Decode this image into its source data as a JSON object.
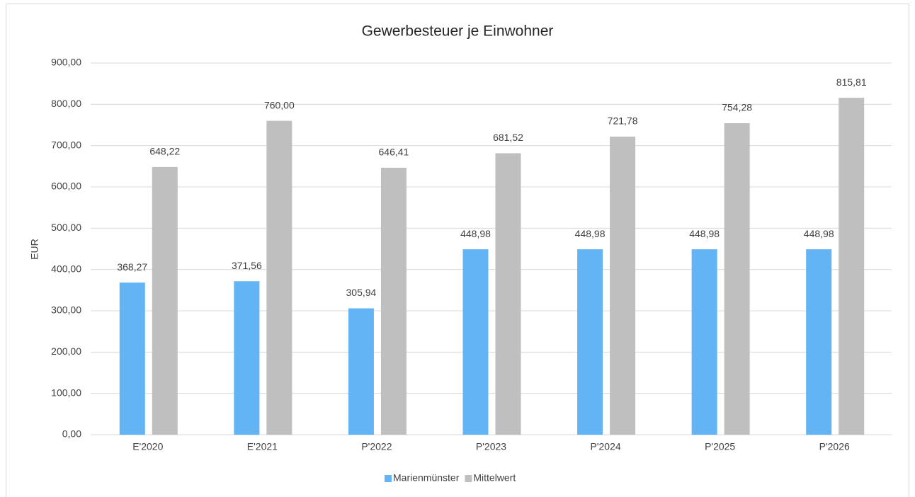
{
  "chart_data": {
    "type": "bar",
    "title": "Gewerbesteuer je Einwohner",
    "y_label": "EUR",
    "categories": [
      "E'2020",
      "E'2021",
      "P'2022",
      "P'2023",
      "P'2024",
      "P'2025",
      "P'2026"
    ],
    "series": [
      {
        "name": "Marienmünster",
        "color": "#63b4f5",
        "values": [
          368.27,
          371.56,
          305.94,
          448.98,
          448.98,
          448.98,
          448.98
        ],
        "value_labels": [
          "368,27",
          "371,56",
          "305,94",
          "448,98",
          "448,98",
          "448,98",
          "448,98"
        ]
      },
      {
        "name": "Mittelwert",
        "color": "#bfbfbf",
        "values": [
          648.22,
          760.0,
          646.41,
          681.52,
          721.78,
          754.28,
          815.81
        ],
        "value_labels": [
          "648,22",
          "760,00",
          "646,41",
          "681,52",
          "721,78",
          "754,28",
          "815,81"
        ]
      }
    ],
    "ylim": [
      0,
      900
    ],
    "yticks": [
      {
        "value": 0,
        "label": "0,00"
      },
      {
        "value": 100,
        "label": "100,00"
      },
      {
        "value": 200,
        "label": "200,00"
      },
      {
        "value": 300,
        "label": "300,00"
      },
      {
        "value": 400,
        "label": "400,00"
      },
      {
        "value": 500,
        "label": "500,00"
      },
      {
        "value": 600,
        "label": "600,00"
      },
      {
        "value": 700,
        "label": "700,00"
      },
      {
        "value": 800,
        "label": "800,00"
      },
      {
        "value": 900,
        "label": "900,00"
      }
    ],
    "grid": true,
    "legend": "bottom"
  }
}
